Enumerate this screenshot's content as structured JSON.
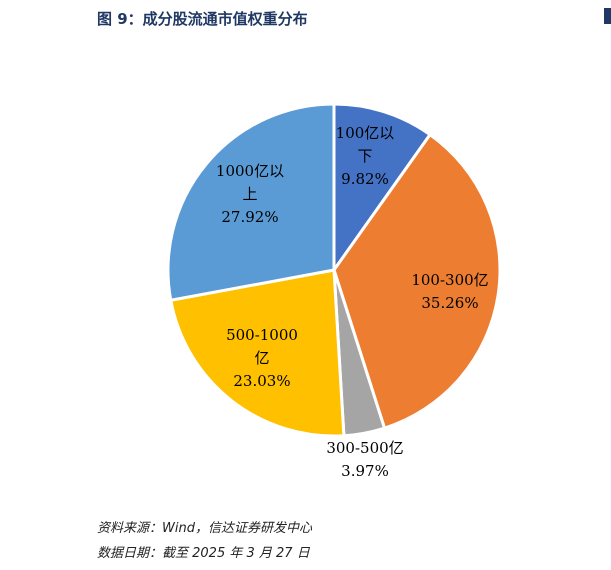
{
  "title": "图 9：成分股流通市值权重分布",
  "source": "资料来源：Wind，信达证券研发中心",
  "date_note": "数据日期：截至 2025 年 3 月 27 日",
  "chart_data": {
    "type": "pie",
    "start": "top",
    "direction": "clockwise",
    "slices": [
      {
        "label": [
          "100亿以",
          "下"
        ],
        "value": 9.82,
        "value_label": "9.82%",
        "color": "#4472C4"
      },
      {
        "label": [
          "100-300亿"
        ],
        "value": 35.26,
        "value_label": "35.26%",
        "color": "#ED7D31"
      },
      {
        "label": [
          "300-500亿"
        ],
        "value": 3.97,
        "value_label": "3.97%",
        "color": "#A5A5A5"
      },
      {
        "label": [
          "500-1000",
          "亿"
        ],
        "value": 23.03,
        "value_label": "23.03%",
        "color": "#FFC000"
      },
      {
        "label": [
          "1000亿以",
          "上"
        ],
        "value": 27.92,
        "value_label": "27.92%",
        "color": "#5B9BD5"
      }
    ]
  }
}
